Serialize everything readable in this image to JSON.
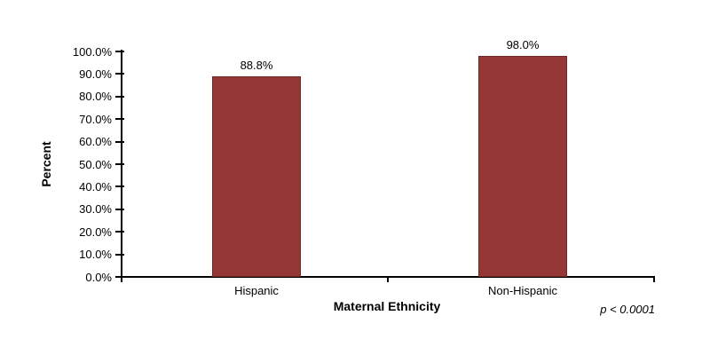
{
  "chart_data": {
    "type": "bar",
    "title": "",
    "categories": [
      "Hispanic",
      "Non-Hispanic"
    ],
    "values": [
      88.8,
      98.0
    ],
    "value_labels": [
      "88.8%",
      "98.0%"
    ],
    "xlabel": "Maternal Ethnicity",
    "ylabel": "Percent",
    "annotation": "p < 0.0001",
    "ylim": [
      0,
      100
    ],
    "ytick_step": 10,
    "ytick_labels": [
      "0.0%",
      "10.0%",
      "20.0%",
      "30.0%",
      "40.0%",
      "50.0%",
      "60.0%",
      "70.0%",
      "80.0%",
      "90.0%",
      "100.0%"
    ],
    "bar_color": "#953735",
    "bar_border_color": "#6e2826",
    "axis_color": "#000000",
    "text_color": "#000000",
    "background": "#ffffff",
    "grid": false,
    "legend": "none"
  }
}
